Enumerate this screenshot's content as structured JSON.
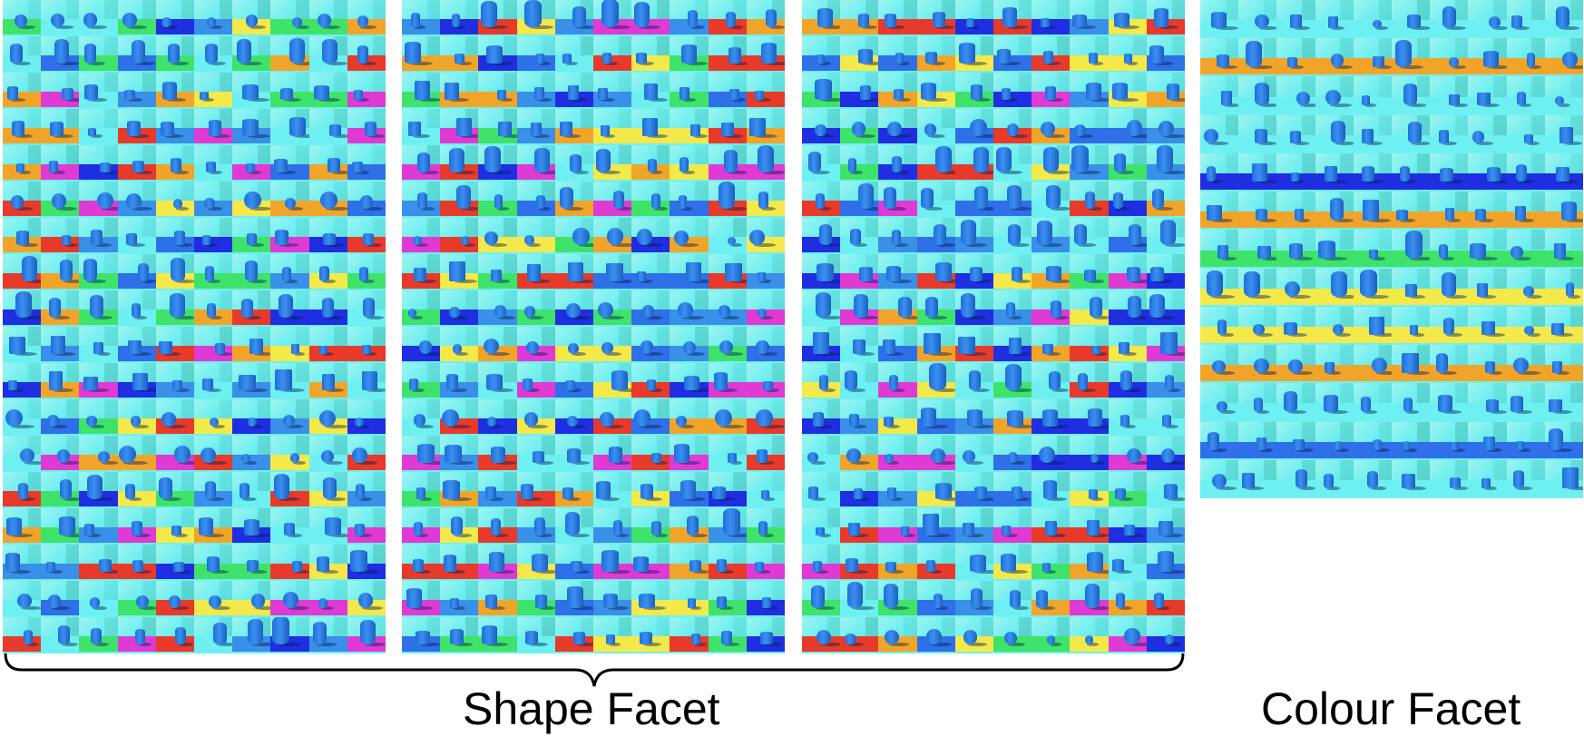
{
  "labels": {
    "shape_facet": "Shape Facet",
    "colour_facet": "Colour Facet"
  },
  "colors": {
    "background_sky": "#72f0f2",
    "object_blue": "#2a7fe6",
    "floor_palette": [
      "#e83a2a",
      "#f3e94a",
      "#3fe36a",
      "#2f6fe8",
      "#1f2ee0",
      "#e03ad4",
      "#f0a52a",
      "#6ef0f2",
      "#3a8fe8"
    ]
  },
  "panels": [
    {
      "id": "shape-panel-1",
      "facet": "shape",
      "columns": 10,
      "rows": 18
    },
    {
      "id": "shape-panel-2",
      "facet": "shape",
      "columns": 10,
      "rows": 18
    },
    {
      "id": "shape-panel-3",
      "facet": "shape",
      "columns": 10,
      "rows": 18
    },
    {
      "id": "colour-panel-1",
      "facet": "colour",
      "columns": 10,
      "rows": 13
    }
  ]
}
